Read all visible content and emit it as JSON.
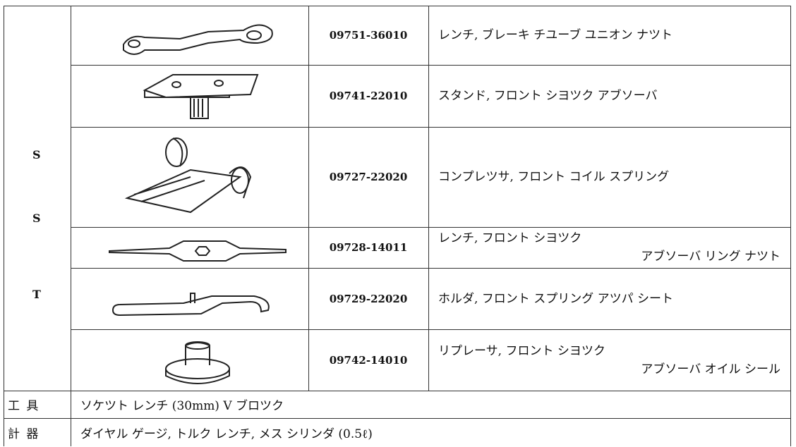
{
  "side_label": [
    "S",
    "S",
    "T"
  ],
  "tools": [
    {
      "part_number": "09751-36010",
      "name_lines": [
        "レンチ, ブレーキ チユーブ ユニオン ナツト"
      ]
    },
    {
      "part_number": "09741-22010",
      "name_lines": [
        "スタンド, フロント シヨツク アブソーバ"
      ]
    },
    {
      "part_number": "09727-22020",
      "name_lines": [
        "コンプレツサ, フロント コイル スプリング"
      ]
    },
    {
      "part_number": "09728-14011",
      "name_lines": [
        "レンチ, フロント シヨツク",
        "アブソーバ リング ナツト"
      ]
    },
    {
      "part_number": "09729-22020",
      "name_lines": [
        "ホルダ, フロント スプリング アツパ シート"
      ]
    },
    {
      "part_number": "09742-14010",
      "name_lines": [
        "リプレーサ, フロント シヨツク",
        "アブソーバ オイル シール"
      ]
    }
  ],
  "footer": [
    {
      "label": "工 具",
      "text": "ソケツト レンチ (30mm) V ブロツク"
    },
    {
      "label": "計 器",
      "text": "ダイヤル ゲージ, トルク レンチ, メス シリンダ (0.5ℓ)"
    }
  ]
}
